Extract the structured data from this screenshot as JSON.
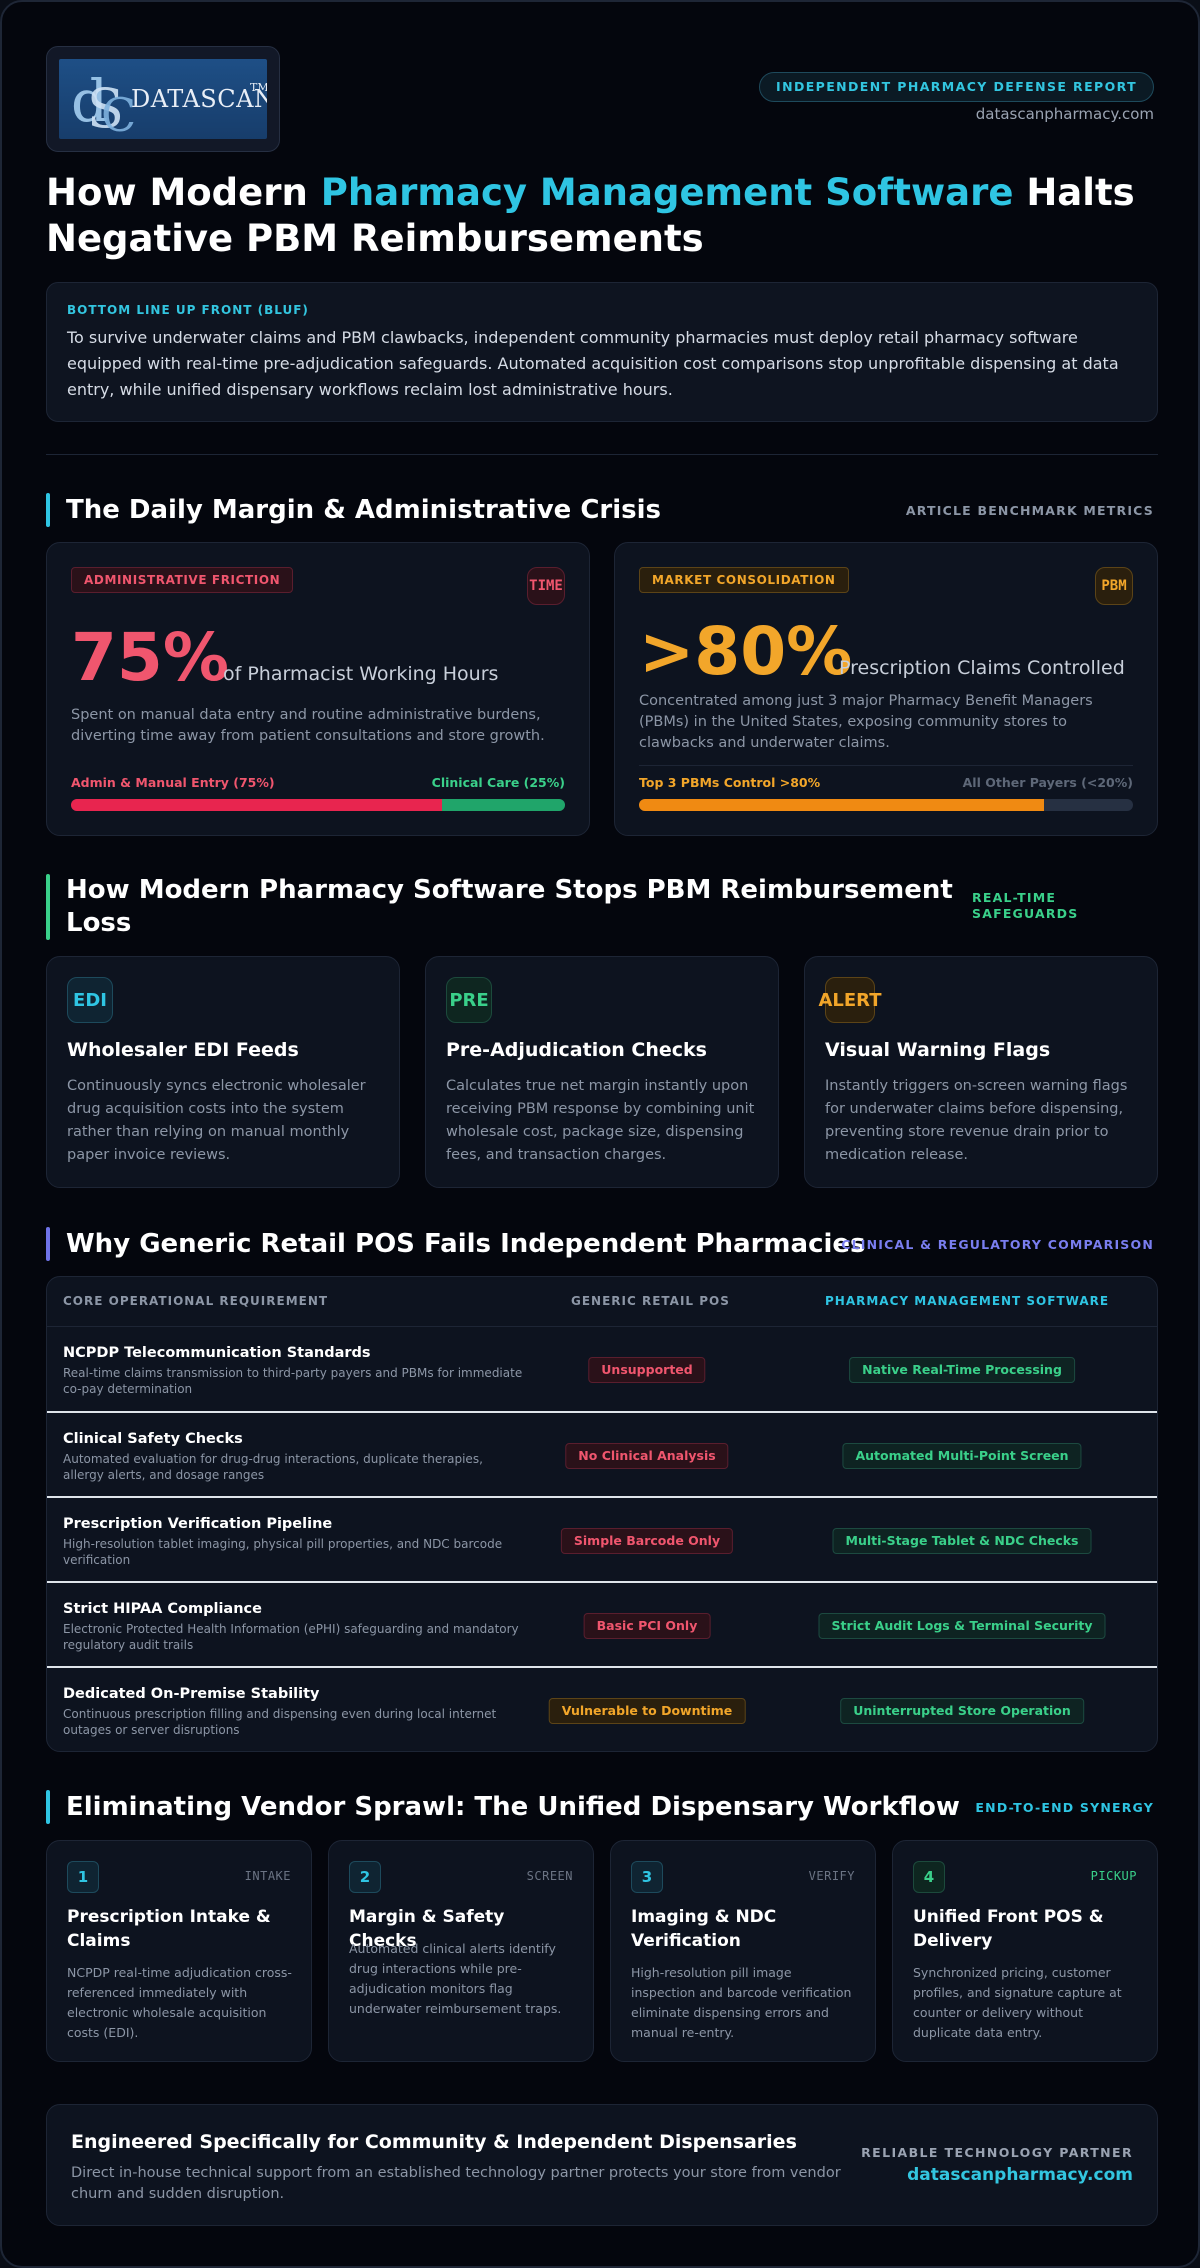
{
  "header": {
    "logo_text": "DATASCAN",
    "logo_tm": "TM",
    "report_label": "INDEPENDENT PHARMACY DEFENSE REPORT",
    "url": "datascanpharmacy.com"
  },
  "title": {
    "part1": "How Modern ",
    "highlight": "Pharmacy Management Software",
    "part2": " Halts Negative PBM Reimbursements"
  },
  "bluf": {
    "label": "BOTTOM LINE UP FRONT (BLUF)",
    "text": "To survive underwater claims and PBM clawbacks, independent community pharmacies must deploy retail pharmacy software equipped with real-time pre-adjudication safeguards. Automated acquisition cost comparisons stop unprofitable dispensing at data entry, while unified dispensary workflows reclaim lost administrative hours."
  },
  "crisis": {
    "title": "The Daily Margin & Administrative Crisis",
    "tag": "ARTICLE BENCHMARK METRICS",
    "cards": [
      {
        "chip": "ADMINISTRATIVE FRICTION",
        "icon": "TIME",
        "icon_name": "time-icon",
        "value": "75%",
        "caption": "of Pharmacist Working Hours",
        "desc": "Spent on manual data entry and routine administrative burdens, diverting time away from patient consultations and store growth.",
        "bar_left_label": "Admin & Manual Entry (75%)",
        "bar_right_label": "Clinical Care (25%)",
        "bar_fraction": 0.75,
        "color": "#f0566e"
      },
      {
        "chip": "MARKET CONSOLIDATION",
        "icon": "PBM",
        "icon_name": "pbm-icon",
        "value": ">80%",
        "caption": "Prescription Claims Controlled",
        "desc": "Concentrated among just 3 major Pharmacy Benefit Managers (PBMs) in the United States, exposing community stores to clawbacks and underwater claims.",
        "bar_left_label": "Top 3 PBMs Control >80%",
        "bar_right_label": "All Other Payers (<20%)",
        "bar_fraction": 0.82,
        "color": "#f2a62a"
      }
    ]
  },
  "safeguards": {
    "title": "How Modern Pharmacy Software Stops PBM Reimbursement Loss",
    "tag": "REAL-TIME SAFEGUARDS",
    "cards": [
      {
        "icon": "EDI",
        "icon_name": "edi-icon",
        "title": "Wholesaler EDI Feeds",
        "desc": "Continuously syncs electronic wholesaler drug acquisition costs into the system rather than relying on manual monthly paper invoice reviews."
      },
      {
        "icon": "PRE",
        "icon_name": "pre-adjudication-icon",
        "title": "Pre-Adjudication Checks",
        "desc": "Calculates true net margin instantly upon receiving PBM response by combining unit wholesale cost, package size, dispensing fees, and transaction charges."
      },
      {
        "icon": "ALERT",
        "icon_name": "alert-icon",
        "title": "Visual Warning Flags",
        "desc": "Instantly triggers on-screen warning flags for underwater claims before dispensing, preventing store revenue drain prior to medication release."
      }
    ]
  },
  "comparison": {
    "title": "Why Generic Retail POS Fails Independent Pharmacies",
    "tag": "CLINICAL & REGULATORY COMPARISON",
    "headers": [
      "CORE OPERATIONAL REQUIREMENT",
      "GENERIC RETAIL POS",
      "PHARMACY MANAGEMENT SOFTWARE"
    ],
    "rows": [
      {
        "title": "NCPDP Telecommunication Standards",
        "desc": "Real-time claims transmission to third-party payers and PBMs for immediate co-pay determination",
        "pos": "Unsupported",
        "pms": "Native Real-Time Processing"
      },
      {
        "title": "Clinical Safety Checks",
        "desc": "Automated evaluation for drug-drug interactions, duplicate therapies, allergy alerts, and dosage ranges",
        "pos": "No Clinical Analysis",
        "pms": "Automated Multi-Point Screen"
      },
      {
        "title": "Prescription Verification Pipeline",
        "desc": "High-resolution tablet imaging, physical pill properties, and NDC barcode verification",
        "pos": "Simple Barcode Only",
        "pms": "Multi-Stage Tablet & NDC Checks"
      },
      {
        "title": "Strict HIPAA Compliance",
        "desc": "Electronic Protected Health Information (ePHI) safeguarding and mandatory regulatory audit trails",
        "pos": "Basic PCI Only",
        "pms": "Strict Audit Logs & Terminal Security"
      },
      {
        "title": "Dedicated On-Premise Stability",
        "desc": "Continuous prescription filling and dispensing even during local internet outages or server disruptions",
        "pos": "Vulnerable to Downtime",
        "pms": "Uninterrupted Store Operation"
      }
    ]
  },
  "workflow": {
    "title": "Eliminating Vendor Sprawl: The Unified Dispensary Workflow",
    "tag": "END-TO-END SYNERGY",
    "steps": [
      {
        "num": "1",
        "tag": "INTAKE",
        "title": "Prescription Intake & Claims",
        "desc": "NCPDP real-time adjudication cross-referenced immediately with electronic wholesale acquisition costs (EDI)."
      },
      {
        "num": "2",
        "tag": "SCREEN",
        "title": "Margin & Safety Checks",
        "desc": "Automated clinical alerts identify drug interactions while pre-adjudication monitors flag underwater reimbursement traps."
      },
      {
        "num": "3",
        "tag": "VERIFY",
        "title": "Imaging & NDC Verification",
        "desc": "High-resolution pill image inspection and barcode verification eliminate dispensing errors and manual re-entry."
      },
      {
        "num": "4",
        "tag": "PICKUP",
        "title": "Unified Front POS & Delivery",
        "desc": "Synchronized pricing, customer profiles, and signature capture at counter or delivery without duplicate data entry."
      }
    ]
  },
  "footer": {
    "title": "Engineered Specifically for Community & Independent Dispensaries",
    "desc": "Direct in-house technical support from an established technology partner protects your store from vendor churn and sudden disruption.",
    "tag": "RELIABLE TECHNOLOGY PARTNER",
    "url": "datascanpharmacy.com"
  },
  "colors": {
    "accent_cyan": "#2fc5e3",
    "red": "#f0566e",
    "amber": "#f2a62a",
    "green": "#3ad08a",
    "indigo": "#6f73e8"
  }
}
